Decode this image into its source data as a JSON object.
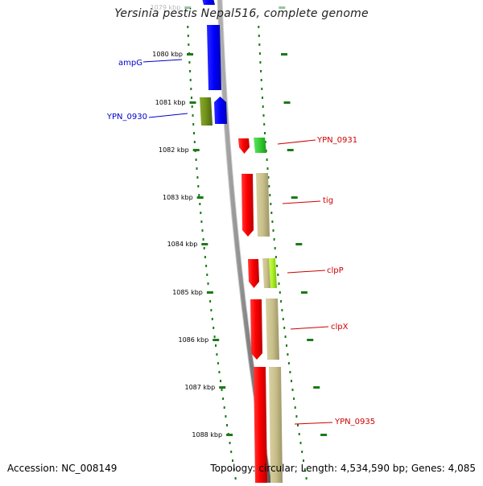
{
  "title": "Yersinia pestis Nepal516, complete genome",
  "accession": "Accession: NC_008149",
  "topology": "Topology: circular; Length: 4,534,590 bp; Genes: 4,085",
  "colors": {
    "forward_cds": "#ff0000",
    "reverse_cds": "#0000ff",
    "gene_tan": "#c8bf8a",
    "gene_olive": "#6f8f1a",
    "gene_green": "#33cc33",
    "gene_lime": "#aaee22",
    "scale_tick": "#1a7a1a",
    "backbone": "#888888",
    "label_forward": "#cc0000",
    "label_reverse": "#0000cc"
  },
  "ticks": [
    {
      "label": "1079 kbp",
      "faded": true
    },
    {
      "label": "1080 kbp"
    },
    {
      "label": "1081 kbp"
    },
    {
      "label": "1082 kbp"
    },
    {
      "label": "1083 kbp"
    },
    {
      "label": "1084 kbp"
    },
    {
      "label": "1085 kbp"
    },
    {
      "label": "1086 kbp"
    },
    {
      "label": "1087 kbp"
    },
    {
      "label": "1088 kbp"
    }
  ],
  "features": {
    "reverse": [
      {
        "name": "ampG",
        "strand": "reverse"
      },
      {
        "name": "YPN_0930",
        "strand": "reverse"
      }
    ],
    "forward": [
      {
        "name": "YPN_0931",
        "strand": "forward"
      },
      {
        "name": "tig",
        "strand": "forward"
      },
      {
        "name": "clpP",
        "strand": "forward"
      },
      {
        "name": "clpX",
        "strand": "forward"
      },
      {
        "name": "YPN_0935",
        "strand": "forward"
      }
    ]
  }
}
